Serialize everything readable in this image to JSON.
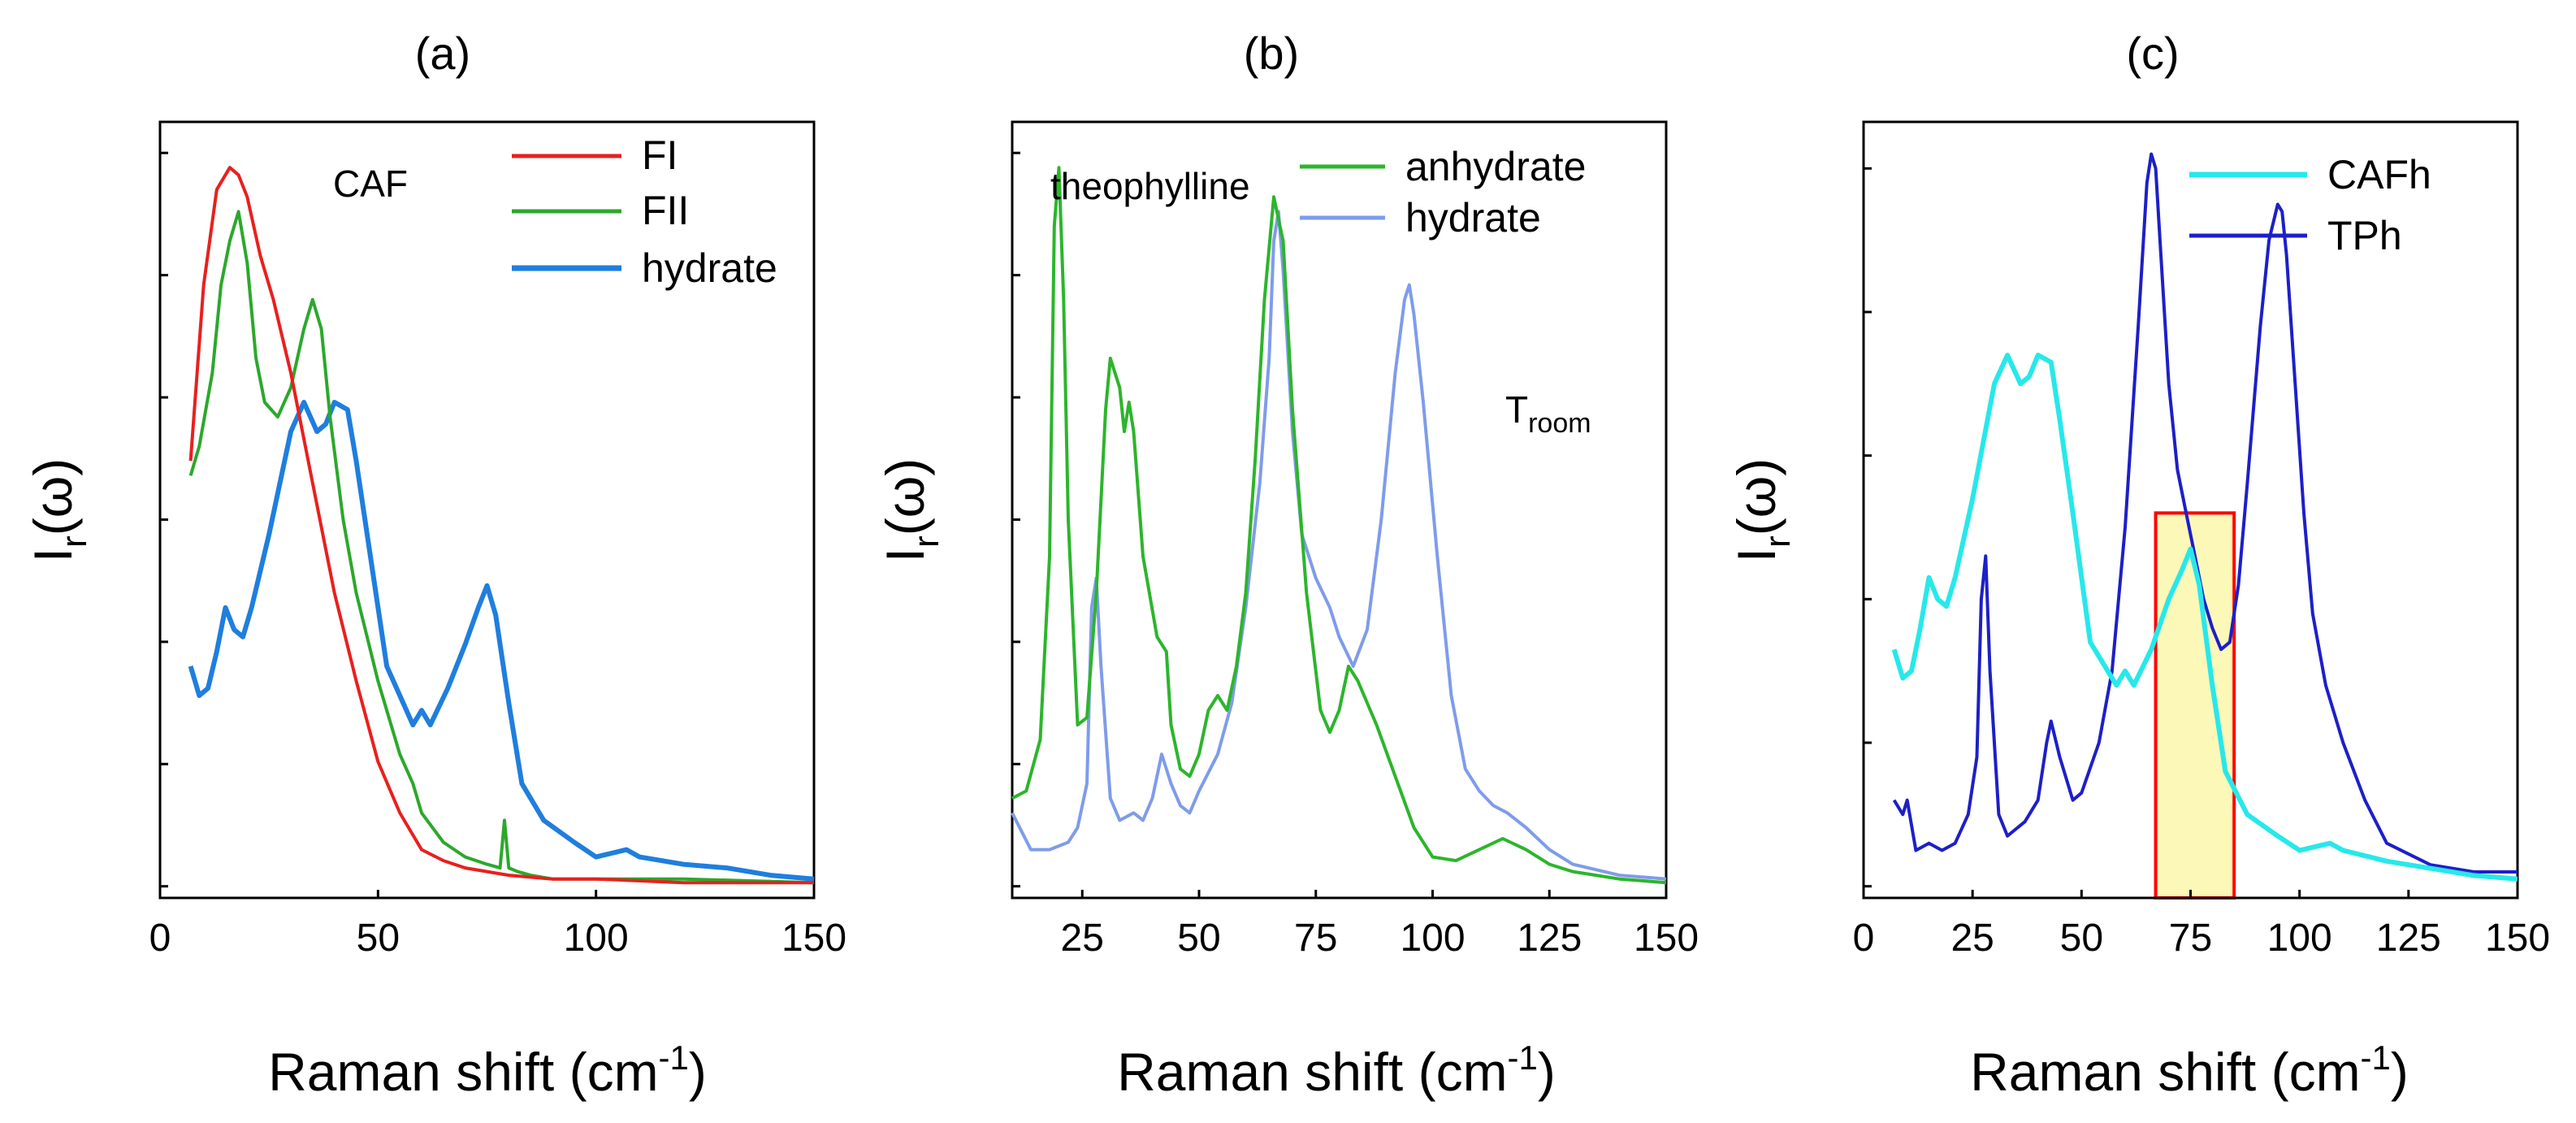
{
  "chart_data": [
    {
      "type": "line",
      "panel": "(a)",
      "annotation": "CAF",
      "xlabel": "Raman shift (cm",
      "xlabel_sup": "-1",
      "xlabel_close": ")",
      "ylabel_main": "I",
      "ylabel_sub": "r",
      "ylabel_tail": "(ω)",
      "xlim": [
        0,
        150
      ],
      "ylim": [
        0,
        1
      ],
      "xticks": [
        "0",
        "50",
        "100",
        "150"
      ],
      "xtick_values": [
        0,
        50,
        100,
        150
      ],
      "series": [
        {
          "name": "FI",
          "color": "#e8201e",
          "x": [
            7,
            10,
            13,
            16,
            18,
            20,
            23,
            26,
            30,
            35,
            40,
            45,
            50,
            55,
            60,
            65,
            70,
            75,
            80,
            90,
            100,
            120,
            150
          ],
          "y": [
            0.58,
            0.82,
            0.95,
            0.98,
            0.97,
            0.94,
            0.86,
            0.8,
            0.7,
            0.55,
            0.4,
            0.28,
            0.17,
            0.1,
            0.05,
            0.035,
            0.025,
            0.02,
            0.015,
            0.01,
            0.01,
            0.005,
            0.005
          ]
        },
        {
          "name": "FII",
          "color": "#2ca82c",
          "x": [
            7,
            9,
            12,
            14,
            16,
            18,
            20,
            22,
            24,
            27,
            30,
            33,
            35,
            37,
            39,
            42,
            45,
            50,
            55,
            58,
            60,
            65,
            70,
            75,
            78,
            79,
            80,
            82,
            85,
            90,
            100,
            120,
            150
          ],
          "y": [
            0.56,
            0.6,
            0.7,
            0.82,
            0.88,
            0.92,
            0.85,
            0.72,
            0.66,
            0.64,
            0.68,
            0.76,
            0.8,
            0.76,
            0.64,
            0.5,
            0.4,
            0.28,
            0.18,
            0.14,
            0.1,
            0.06,
            0.04,
            0.03,
            0.025,
            0.09,
            0.025,
            0.02,
            0.015,
            0.01,
            0.01,
            0.01,
            0.005
          ]
        },
        {
          "name": "hydrate",
          "color": "#1f7ede",
          "x": [
            7,
            9,
            11,
            13,
            15,
            17,
            19,
            21,
            25,
            30,
            33,
            36,
            38,
            40,
            43,
            45,
            48,
            52,
            58,
            60,
            62,
            66,
            70,
            73,
            75,
            77,
            80,
            83,
            88,
            95,
            100,
            107,
            110,
            120,
            130,
            140,
            150
          ],
          "y": [
            0.3,
            0.26,
            0.27,
            0.32,
            0.38,
            0.35,
            0.34,
            0.38,
            0.48,
            0.62,
            0.66,
            0.62,
            0.63,
            0.66,
            0.65,
            0.58,
            0.46,
            0.3,
            0.22,
            0.24,
            0.22,
            0.27,
            0.33,
            0.38,
            0.41,
            0.37,
            0.25,
            0.14,
            0.09,
            0.06,
            0.04,
            0.05,
            0.04,
            0.03,
            0.025,
            0.015,
            0.01
          ]
        }
      ]
    },
    {
      "type": "line",
      "panel": "(b)",
      "annotation": "theophylline",
      "annotation2_main": "T",
      "annotation2_sub": "room",
      "xlabel": "Raman shift (cm",
      "xlabel_sup": "-1",
      "xlabel_close": ")",
      "ylabel_main": "I",
      "ylabel_sub": "r",
      "ylabel_tail": "(ω)",
      "xlim": [
        10,
        150
      ],
      "ylim": [
        0,
        1
      ],
      "xticks": [
        "25",
        "50",
        "75",
        "100",
        "125",
        "150"
      ],
      "xtick_values": [
        25,
        50,
        75,
        100,
        125,
        150
      ],
      "series": [
        {
          "name": "anhydrate",
          "color": "#2cb52c",
          "x": [
            10,
            13,
            16,
            18,
            19,
            20,
            21,
            22,
            24,
            26,
            28,
            30,
            31,
            33,
            34,
            35,
            36,
            38,
            41,
            43,
            44,
            46,
            48,
            50,
            52,
            54,
            56,
            58,
            60,
            62,
            64,
            66,
            68,
            70,
            73,
            76,
            78,
            80,
            82,
            84,
            86,
            88,
            92,
            96,
            100,
            105,
            110,
            115,
            120,
            125,
            130,
            140,
            150
          ],
          "y": [
            0.12,
            0.13,
            0.2,
            0.45,
            0.9,
            0.98,
            0.8,
            0.5,
            0.22,
            0.23,
            0.4,
            0.65,
            0.72,
            0.68,
            0.62,
            0.66,
            0.62,
            0.45,
            0.34,
            0.32,
            0.22,
            0.16,
            0.15,
            0.18,
            0.24,
            0.26,
            0.24,
            0.3,
            0.4,
            0.58,
            0.8,
            0.94,
            0.88,
            0.65,
            0.4,
            0.24,
            0.21,
            0.24,
            0.3,
            0.28,
            0.25,
            0.22,
            0.15,
            0.08,
            0.04,
            0.035,
            0.05,
            0.065,
            0.05,
            0.03,
            0.02,
            0.01,
            0.005
          ]
        },
        {
          "name": "hydrate",
          "color": "#7f9cea",
          "x": [
            10,
            14,
            18,
            22,
            24,
            26,
            27,
            28,
            29,
            31,
            33,
            36,
            38,
            40,
            42,
            44,
            46,
            48,
            50,
            54,
            57,
            60,
            63,
            65,
            66,
            67,
            68,
            70,
            72,
            75,
            78,
            80,
            83,
            86,
            89,
            92,
            94,
            95,
            96,
            98,
            101,
            104,
            107,
            110,
            113,
            116,
            120,
            125,
            130,
            140,
            150
          ],
          "y": [
            0.1,
            0.05,
            0.05,
            0.06,
            0.08,
            0.14,
            0.38,
            0.42,
            0.3,
            0.12,
            0.09,
            0.1,
            0.09,
            0.12,
            0.18,
            0.14,
            0.11,
            0.1,
            0.13,
            0.18,
            0.25,
            0.38,
            0.55,
            0.72,
            0.88,
            0.92,
            0.84,
            0.62,
            0.48,
            0.42,
            0.38,
            0.34,
            0.3,
            0.35,
            0.5,
            0.7,
            0.8,
            0.82,
            0.78,
            0.66,
            0.45,
            0.26,
            0.16,
            0.13,
            0.11,
            0.1,
            0.08,
            0.05,
            0.03,
            0.015,
            0.01
          ]
        }
      ]
    },
    {
      "type": "line",
      "panel": "(c)",
      "xlabel": "Raman shift (cm",
      "xlabel_sup": "-1",
      "xlabel_close": ")",
      "ylabel_main": "I",
      "ylabel_sub": "r",
      "ylabel_tail": "(ω)",
      "xlim": [
        0,
        150
      ],
      "ylim": [
        0,
        1
      ],
      "xticks": [
        "0",
        "25",
        "50",
        "75",
        "100",
        "125",
        "150"
      ],
      "xtick_values": [
        0,
        25,
        50,
        75,
        100,
        125,
        150
      ],
      "highlight_x": [
        67,
        85
      ],
      "highlight_y": [
        0.0,
        0.52
      ],
      "series": [
        {
          "name": "CAFh",
          "color": "#27e8ea",
          "x": [
            7,
            9,
            11,
            13,
            15,
            17,
            19,
            21,
            25,
            30,
            33,
            36,
            38,
            40,
            43,
            45,
            48,
            52,
            58,
            60,
            62,
            66,
            70,
            73,
            75,
            77,
            80,
            83,
            88,
            95,
            100,
            107,
            110,
            120,
            130,
            140,
            150
          ],
          "y": [
            0.33,
            0.29,
            0.3,
            0.36,
            0.43,
            0.4,
            0.39,
            0.43,
            0.54,
            0.7,
            0.74,
            0.7,
            0.71,
            0.74,
            0.73,
            0.65,
            0.52,
            0.34,
            0.28,
            0.3,
            0.28,
            0.33,
            0.4,
            0.44,
            0.47,
            0.42,
            0.28,
            0.16,
            0.1,
            0.07,
            0.05,
            0.06,
            0.05,
            0.035,
            0.025,
            0.015,
            0.01
          ]
        },
        {
          "name": "TPh",
          "color": "#1d1fc8",
          "x": [
            7,
            9,
            10,
            12,
            15,
            18,
            21,
            24,
            26,
            27,
            28,
            29,
            31,
            33,
            35,
            37,
            40,
            42,
            43,
            45,
            48,
            50,
            54,
            57,
            60,
            63,
            65,
            66,
            67,
            68,
            70,
            72,
            74,
            76,
            78,
            80,
            82,
            84,
            86,
            88,
            91,
            93,
            95,
            96,
            97,
            99,
            101,
            103,
            106,
            110,
            115,
            120,
            130,
            140,
            150
          ],
          "y": [
            0.12,
            0.1,
            0.12,
            0.05,
            0.06,
            0.05,
            0.06,
            0.1,
            0.18,
            0.4,
            0.46,
            0.3,
            0.1,
            0.07,
            0.08,
            0.09,
            0.12,
            0.2,
            0.23,
            0.18,
            0.12,
            0.13,
            0.2,
            0.3,
            0.5,
            0.78,
            0.98,
            1.02,
            1.0,
            0.9,
            0.7,
            0.58,
            0.52,
            0.46,
            0.4,
            0.36,
            0.33,
            0.34,
            0.42,
            0.56,
            0.78,
            0.9,
            0.95,
            0.94,
            0.88,
            0.7,
            0.52,
            0.38,
            0.28,
            0.2,
            0.12,
            0.06,
            0.03,
            0.02,
            0.02
          ]
        }
      ]
    }
  ]
}
